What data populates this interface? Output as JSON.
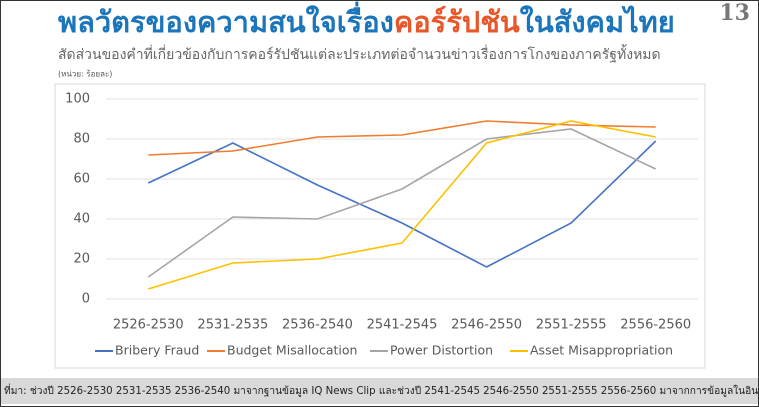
{
  "chart_data": {
    "type": "line",
    "title": [
      "พลวัตรของความสนใจเรื่อง",
      "คอร์รัปชัน",
      "ในสังคมไทย"
    ],
    "page_number": "13",
    "subtitle": "สัดส่วนของคำที่เกี่ยวข้องกับการคอร์รัปชันแต่ละประเภทต่อจำนวนข่าวเรื่องการโกงของภาครัฐทั้งหมด",
    "unit_note": "(หน่วย: ร้อยละ)",
    "source": "ที่มา: ช่วงปี 2526-2530 2531-2535 2536-2540 มาจากฐานข้อมูล IQ News Clip และช่วงปี 2541-2545 2546-2550 2551-2555 2556-2560 มาจากการข้อมูลในอินเตอร์เน็ต",
    "categories": [
      "2526-2530",
      "2531-2535",
      "2536-2540",
      "2541-2545",
      "2546-2550",
      "2551-2555",
      "2556-2560"
    ],
    "series": [
      {
        "name": "Bribery Fraud",
        "color": "#4472c4",
        "values": [
          58,
          78,
          57,
          38,
          16,
          38,
          79
        ]
      },
      {
        "name": "Budget Misallocation",
        "color": "#ed7d31",
        "values": [
          72,
          74,
          81,
          82,
          89,
          87,
          86
        ]
      },
      {
        "name": "Power Distortion",
        "color": "#a5a5a5",
        "values": [
          11,
          41,
          40,
          55,
          80,
          85,
          65
        ]
      },
      {
        "name": "Asset Misappropriation",
        "color": "#ffc000",
        "values": [
          5,
          18,
          20,
          28,
          78,
          89,
          81
        ]
      }
    ],
    "ylim": [
      0,
      100
    ],
    "yticks": [
      0,
      20,
      40,
      60,
      80,
      100
    ],
    "grid": true
  }
}
